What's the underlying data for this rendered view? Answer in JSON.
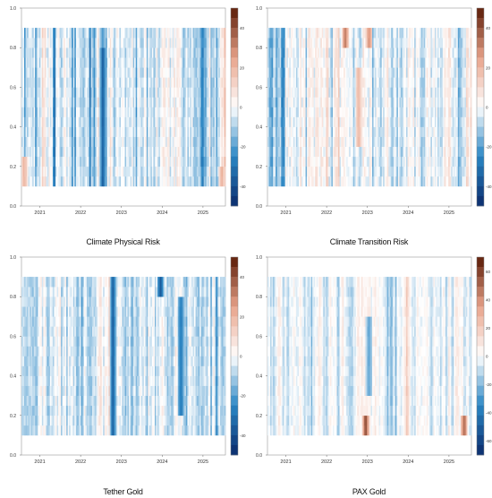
{
  "chart_data": [
    {
      "type": "heatmap",
      "title": "Climate Physical Risk",
      "xlabel": "",
      "ylabel": "",
      "x_ticks": [
        "2021",
        "2022",
        "2023",
        "2024",
        "2025"
      ],
      "y_ticks": [
        "0.0",
        "0.2",
        "0.4",
        "0.6",
        "0.8",
        "1.0"
      ],
      "ylim": [
        0,
        1
      ],
      "quantile_range": [
        0.1,
        0.9
      ],
      "colorbar": {
        "ticks": [
          "40",
          "20",
          "0",
          "-20",
          "-40"
        ],
        "range": [
          -50,
          50
        ]
      },
      "colors": {
        "negative": "#0b2b6b",
        "mid_negative": "#2a86c4",
        "neutral": "#ffffff",
        "mid_positive": "#e8a38a",
        "positive": "#5a1a05"
      },
      "seed": 11,
      "bias": -0.25,
      "hotspots": [
        {
          "x": "2022-07",
          "q_from": 0.8,
          "q_to": 0.9,
          "value": 45
        },
        {
          "x": "2022-07",
          "q_from": 0.1,
          "q_to": 0.9,
          "value": -35
        },
        {
          "x": "2020-08",
          "q_from": 0.1,
          "q_to": 0.25,
          "value": 25
        },
        {
          "x": "2025-06",
          "q_from": 0.1,
          "q_to": 0.2,
          "value": 20
        }
      ]
    },
    {
      "type": "heatmap",
      "title": "Climate Transition Risk",
      "xlabel": "",
      "ylabel": "",
      "x_ticks": [
        "2021",
        "2022",
        "2023",
        "2024",
        "2025"
      ],
      "y_ticks": [
        "0.0",
        "0.2",
        "0.4",
        "0.6",
        "0.8",
        "1.0"
      ],
      "ylim": [
        0,
        1
      ],
      "quantile_range": [
        0.1,
        0.9
      ],
      "colorbar": {
        "ticks": [
          "40",
          "20",
          "0",
          "-20",
          "-40"
        ],
        "range": [
          -50,
          50
        ]
      },
      "colors": {
        "negative": "#0b2b6b",
        "mid_negative": "#2a86c4",
        "neutral": "#ffffff",
        "mid_positive": "#e8a38a",
        "positive": "#5a1a05"
      },
      "seed": 23,
      "bias": -0.2,
      "hotspots": [
        {
          "x": "2022-06",
          "q_from": 0.8,
          "q_to": 0.9,
          "value": 35
        },
        {
          "x": "2022-10",
          "q_from": 0.3,
          "q_to": 0.7,
          "value": 22
        },
        {
          "x": "2023-01",
          "q_from": 0.8,
          "q_to": 0.9,
          "value": 30
        }
      ]
    },
    {
      "type": "heatmap",
      "title": "Tether Gold",
      "xlabel": "",
      "ylabel": "",
      "x_ticks": [
        "2021",
        "2022",
        "2023",
        "2024",
        "2025"
      ],
      "y_ticks": [
        "0.0",
        "0.2",
        "0.4",
        "0.6",
        "0.8",
        "1.0"
      ],
      "ylim": [
        0,
        1
      ],
      "quantile_range": [
        0.1,
        0.9
      ],
      "colorbar": {
        "ticks": [
          "40",
          "20",
          "0",
          "-20",
          "-40"
        ],
        "range": [
          -50,
          50
        ]
      },
      "colors": {
        "negative": "#0b2b6b",
        "mid_negative": "#2a86c4",
        "neutral": "#ffffff",
        "mid_positive": "#e8a38a",
        "positive": "#5a1a05"
      },
      "seed": 37,
      "bias": -0.35,
      "hotspots": [
        {
          "x": "2022-10",
          "q_from": 0.1,
          "q_to": 0.9,
          "value": -35
        },
        {
          "x": "2023-12",
          "q_from": 0.8,
          "q_to": 0.9,
          "value": -40
        },
        {
          "x": "2024-06",
          "q_from": 0.2,
          "q_to": 0.8,
          "value": -30
        }
      ]
    },
    {
      "type": "heatmap",
      "title": "PAX Gold",
      "xlabel": "",
      "ylabel": "",
      "x_ticks": [
        "2021",
        "2022",
        "2023",
        "2024",
        "2025"
      ],
      "y_ticks": [
        "0.0",
        "0.2",
        "0.4",
        "0.6",
        "0.8",
        "1.0"
      ],
      "ylim": [
        0,
        1
      ],
      "quantile_range": [
        0.1,
        0.9
      ],
      "colorbar": {
        "ticks": [
          "60",
          "40",
          "20",
          "0",
          "-20",
          "-40",
          "-60"
        ],
        "range": [
          -70,
          70
        ]
      },
      "colors": {
        "negative": "#0b2b6b",
        "mid_negative": "#2a86c4",
        "neutral": "#ffffff",
        "mid_positive": "#e8a38a",
        "positive": "#5a1a05"
      },
      "seed": 51,
      "bias": -0.15,
      "hotspots": [
        {
          "x": "2022-12",
          "q_from": 0.1,
          "q_to": 0.2,
          "value": 60
        },
        {
          "x": "2025-05",
          "q_from": 0.1,
          "q_to": 0.2,
          "value": 55
        },
        {
          "x": "2023-01",
          "q_from": 0.3,
          "q_to": 0.7,
          "value": -30
        }
      ]
    }
  ]
}
